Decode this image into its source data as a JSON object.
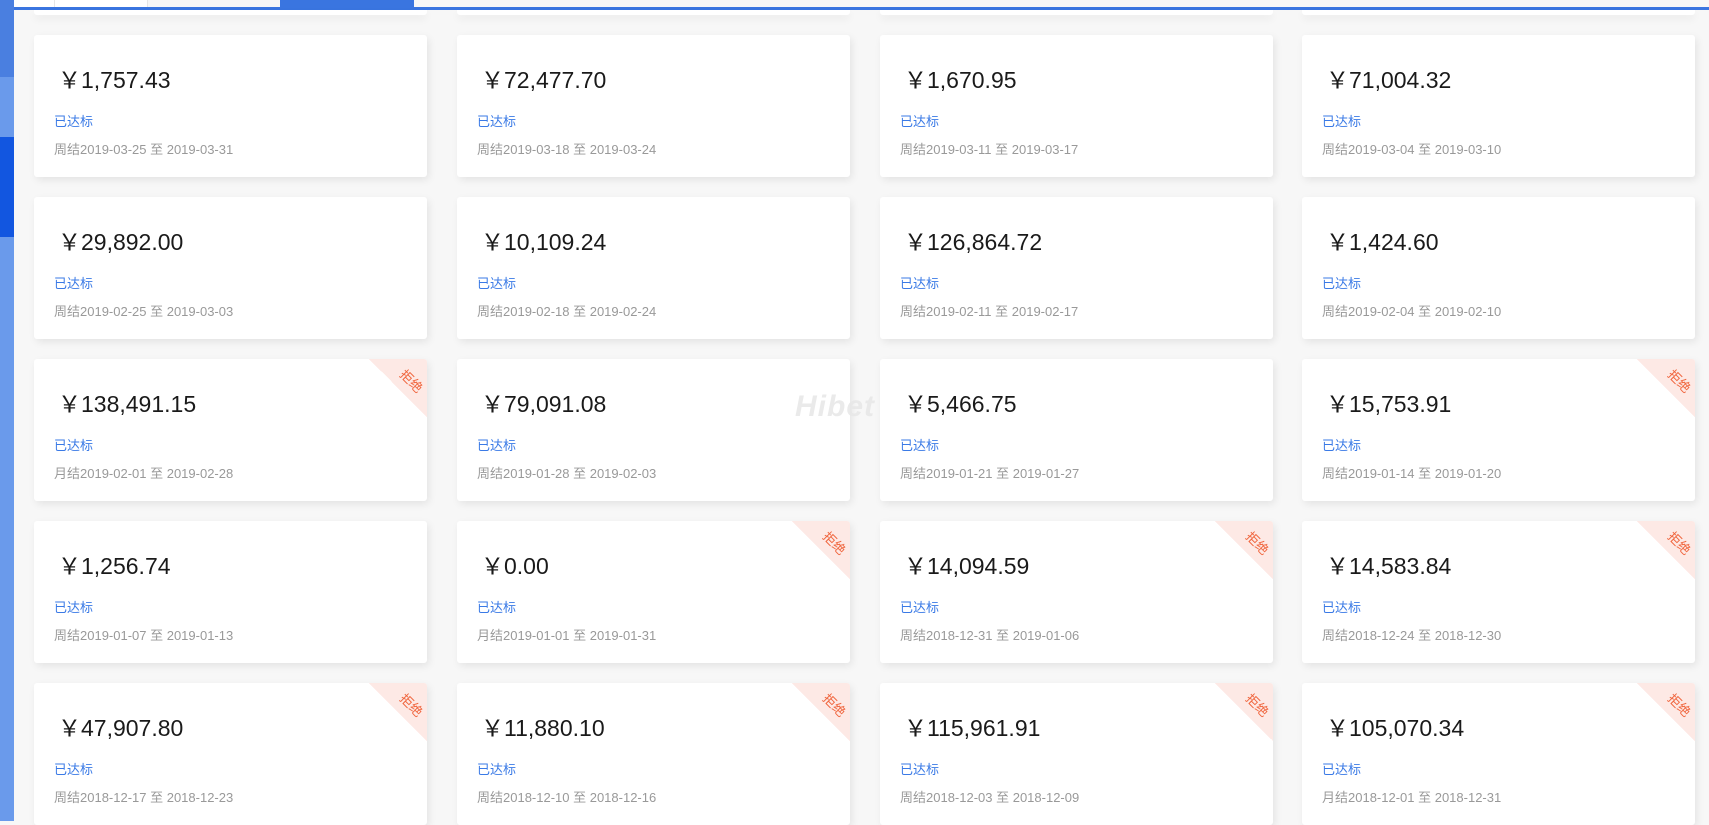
{
  "colors": {
    "accent": "#3a75e0",
    "status": "#3a7ae6",
    "reject": "#f0643c",
    "reject_bg": "#fde9e5"
  },
  "watermark": "Hibet",
  "cards": [
    {
      "amount": "￥1,757.43",
      "status": "已达标",
      "period": "周结2019-03-25 至 2019-03-31",
      "badge": ""
    },
    {
      "amount": "￥72,477.70",
      "status": "已达标",
      "period": "周结2019-03-18 至 2019-03-24",
      "badge": ""
    },
    {
      "amount": "￥1,670.95",
      "status": "已达标",
      "period": "周结2019-03-11 至 2019-03-17",
      "badge": ""
    },
    {
      "amount": "￥71,004.32",
      "status": "已达标",
      "period": "周结2019-03-04 至 2019-03-10",
      "badge": ""
    },
    {
      "amount": "￥29,892.00",
      "status": "已达标",
      "period": "周结2019-02-25 至 2019-03-03",
      "badge": ""
    },
    {
      "amount": "￥10,109.24",
      "status": "已达标",
      "period": "周结2019-02-18 至 2019-02-24",
      "badge": ""
    },
    {
      "amount": "￥126,864.72",
      "status": "已达标",
      "period": "周结2019-02-11 至 2019-02-17",
      "badge": ""
    },
    {
      "amount": "￥1,424.60",
      "status": "已达标",
      "period": "周结2019-02-04 至 2019-02-10",
      "badge": ""
    },
    {
      "amount": "￥138,491.15",
      "status": "已达标",
      "period": "月结2019-02-01 至 2019-02-28",
      "badge": "拒绝"
    },
    {
      "amount": "￥79,091.08",
      "status": "已达标",
      "period": "周结2019-01-28 至 2019-02-03",
      "badge": ""
    },
    {
      "amount": "￥5,466.75",
      "status": "已达标",
      "period": "周结2019-01-21 至 2019-01-27",
      "badge": ""
    },
    {
      "amount": "￥15,753.91",
      "status": "已达标",
      "period": "周结2019-01-14 至 2019-01-20",
      "badge": "拒绝"
    },
    {
      "amount": "￥1,256.74",
      "status": "已达标",
      "period": "周结2019-01-07 至 2019-01-13",
      "badge": ""
    },
    {
      "amount": "￥0.00",
      "status": "已达标",
      "period": "月结2019-01-01 至 2019-01-31",
      "badge": "拒绝"
    },
    {
      "amount": "￥14,094.59",
      "status": "已达标",
      "period": "周结2018-12-31 至 2019-01-06",
      "badge": "拒绝"
    },
    {
      "amount": "￥14,583.84",
      "status": "已达标",
      "period": "周结2018-12-24 至 2018-12-30",
      "badge": "拒绝"
    },
    {
      "amount": "￥47,907.80",
      "status": "已达标",
      "period": "周结2018-12-17 至 2018-12-23",
      "badge": "拒绝"
    },
    {
      "amount": "￥11,880.10",
      "status": "已达标",
      "period": "周结2018-12-10 至 2018-12-16",
      "badge": "拒绝"
    },
    {
      "amount": "￥115,961.91",
      "status": "已达标",
      "period": "周结2018-12-03 至 2018-12-09",
      "badge": "拒绝"
    },
    {
      "amount": "￥105,070.34",
      "status": "已达标",
      "period": "月结2018-12-01 至 2018-12-31",
      "badge": "拒绝"
    }
  ]
}
